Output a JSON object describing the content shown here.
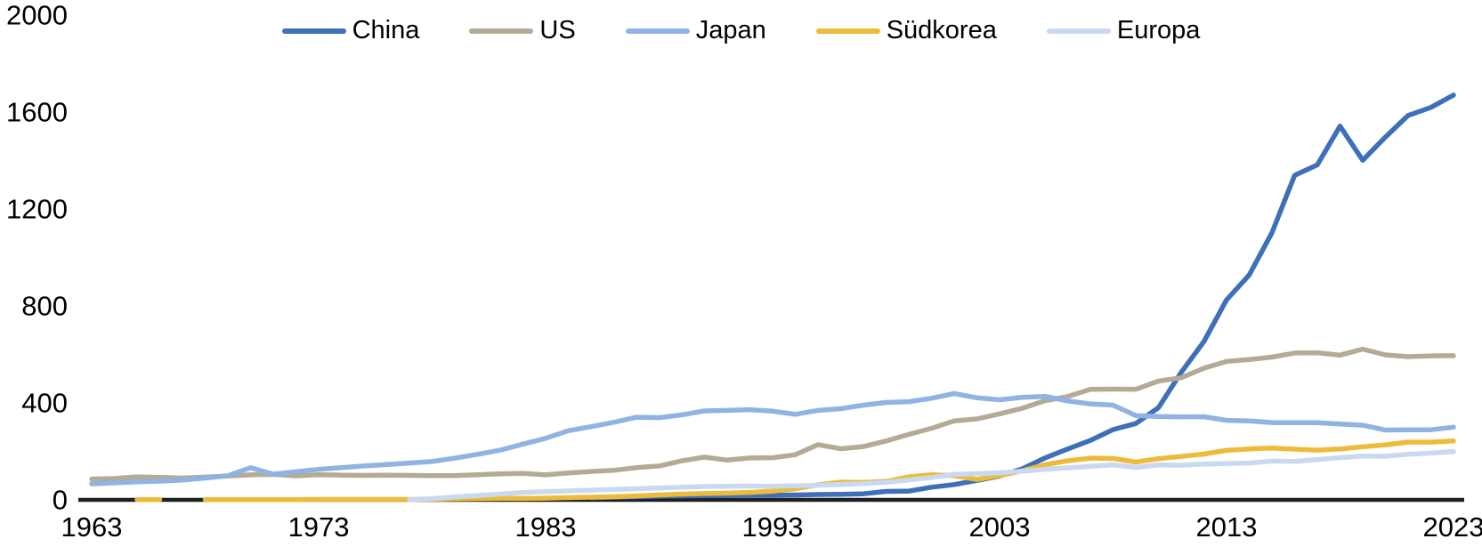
{
  "figure": {
    "background": "#FFFFFF"
  },
  "legend": {
    "position": "top-center"
  },
  "chart_data": {
    "type": "line",
    "title": "",
    "xlabel": "",
    "ylabel": "",
    "x_range": [
      1963,
      2023
    ],
    "ylim": [
      0,
      2000
    ],
    "x_ticks": [
      "1963",
      "1973",
      "1983",
      "1993",
      "2003",
      "2013",
      "2023"
    ],
    "y_ticks": [
      "0",
      "400",
      "800",
      "1200",
      "1600",
      "2000"
    ],
    "y_tick_values": [
      0,
      400,
      800,
      1200,
      1600,
      2000
    ],
    "x_tick_values": [
      1963,
      1973,
      1983,
      1993,
      2003,
      2013,
      2023
    ],
    "grid": false,
    "axis_color": "#1F1F1F",
    "label_color": "#000000",
    "years_start": 1963,
    "series": [
      {
        "name": "China",
        "color": "#3E6FB9",
        "values": [
          null,
          null,
          null,
          null,
          null,
          null,
          null,
          null,
          null,
          null,
          null,
          null,
          null,
          null,
          null,
          null,
          null,
          null,
          null,
          null,
          null,
          null,
          9,
          11,
          13,
          15,
          16,
          17,
          18,
          19,
          19,
          20,
          22,
          23,
          25,
          35,
          36,
          52,
          63,
          80,
          98,
          128,
          173,
          210,
          245,
          290,
          315,
          380,
          526,
          653,
          825,
          928,
          1102,
          1339,
          1382,
          1542,
          1401,
          1497,
          1586,
          1619,
          1670
        ]
      },
      {
        "name": "US",
        "color": "#B3AB96",
        "values": [
          86,
          88,
          95,
          93,
          90,
          94,
          98,
          103,
          105,
          99,
          104,
          102,
          101,
          102,
          101,
          100,
          100,
          104,
          107,
          109,
          103,
          111,
          117,
          122,
          133,
          140,
          161,
          176,
          164,
          173,
          174,
          186,
          228,
          211,
          220,
          243,
          270,
          295,
          326,
          334,
          355,
          378,
          409,
          426,
          456,
          457,
          456,
          490,
          504,
          543,
          571,
          579,
          589,
          606,
          607,
          597,
          622,
          598,
          591,
          594,
          595
        ]
      },
      {
        "name": "Japan",
        "color": "#8FB3E2",
        "values": [
          66,
          70,
          74,
          77,
          82,
          90,
          100,
          133,
          106,
          116,
          126,
          133,
          140,
          146,
          152,
          158,
          172,
          188,
          205,
          230,
          254,
          285,
          302,
          320,
          341,
          339,
          351,
          367,
          369,
          372,
          366,
          353,
          369,
          376,
          391,
          402,
          405,
          419,
          439,
          421,
          413,
          423,
          427,
          408,
          396,
          391,
          348,
          344,
          342,
          343,
          328,
          326,
          319,
          318,
          318,
          313,
          308,
          288,
          289,
          289,
          300
        ]
      },
      {
        "name": "Südkorea",
        "color": "#ECBB3C",
        "values": [
          null,
          null,
          1,
          1,
          null,
          1,
          1,
          1,
          1,
          1,
          2,
          2,
          2,
          2,
          2,
          3,
          4,
          5,
          6,
          6,
          7,
          9,
          11,
          13,
          16,
          20,
          24,
          26,
          28,
          31,
          36,
          45,
          62,
          73,
          72,
          76,
          95,
          104,
          100,
          84,
          100,
          120,
          145,
          161,
          172,
          171,
          156,
          170,
          179,
          189,
          204,
          210,
          214,
          209,
          205,
          210,
          219,
          227,
          238,
          238,
          243
        ]
      },
      {
        "name": "Europa",
        "color": "#C9D9EF",
        "values": [
          null,
          null,
          null,
          null,
          null,
          null,
          null,
          null,
          null,
          null,
          null,
          null,
          null,
          null,
          1,
          5,
          12,
          18,
          24,
          30,
          34,
          37,
          40,
          43,
          46,
          49,
          52,
          55,
          56,
          57,
          56,
          58,
          60,
          63,
          67,
          72,
          82,
          92,
          105,
          108,
          112,
          118,
          126,
          132,
          138,
          145,
          134,
          144,
          143,
          148,
          150,
          152,
          160,
          159,
          166,
          174,
          181,
          180,
          188,
          193,
          199
        ]
      }
    ]
  }
}
